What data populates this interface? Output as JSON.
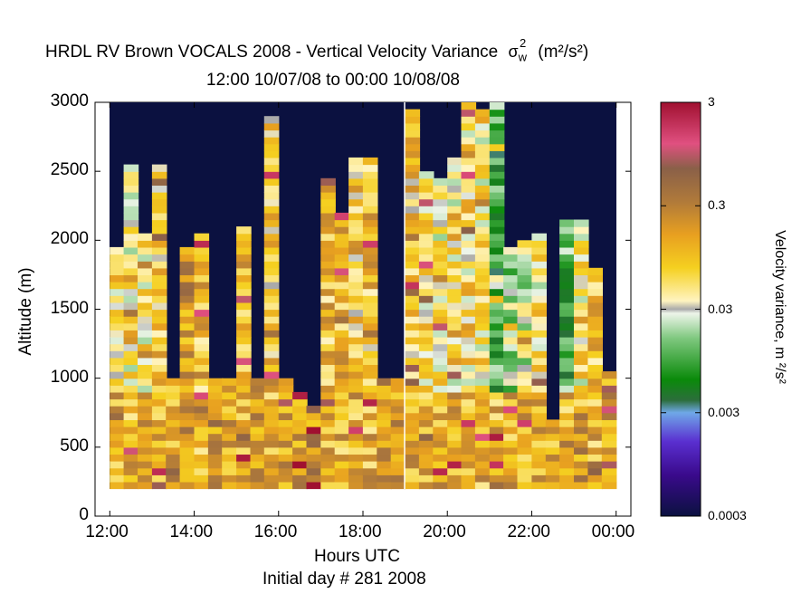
{
  "title": "HRDL RV Brown VOCALS 2008 - Vertical Velocity Variance",
  "title_symbol": "σ",
  "title_symbol_sub": "w",
  "title_symbol_sup": "2",
  "title_units": "(m²/s²)",
  "subtitle": "12:00 10/07/08 to 00:00 10/08/08",
  "chart_data": {
    "type": "heatmap",
    "xlabel": "Hours UTC",
    "ylabel": "Altitude (m)",
    "footer": "Initial day # 281  2008",
    "x_ticks": [
      "12:00",
      "14:00",
      "16:00",
      "18:00",
      "20:00",
      "22:00",
      "00:00"
    ],
    "x_tick_hours": [
      12,
      14,
      16,
      18,
      20,
      22,
      24
    ],
    "xlim_hours": [
      11.65,
      24.35
    ],
    "y_ticks": [
      "0",
      "500",
      "1000",
      "1500",
      "2000",
      "2500",
      "3000"
    ],
    "y_tick_values": [
      0,
      500,
      1000,
      1500,
      2000,
      2500,
      3000
    ],
    "ylim": [
      0,
      3000
    ],
    "data_range_altitude_m": [
      200,
      3000
    ],
    "data_range_hours": [
      12,
      24
    ],
    "colorbar": {
      "label": "Velocity variance, m ²/s²",
      "scale": "log",
      "ticks": [
        "3",
        "0.3",
        "0.03",
        "0.003",
        "0.0003"
      ],
      "tick_values": [
        3,
        0.3,
        0.03,
        0.003,
        0.0003
      ],
      "range": [
        0.0003,
        3
      ]
    },
    "background_color": "#0b1140",
    "data_gap_hour": 19.0,
    "columns": [
      {
        "hour": 12.17,
        "top_m": 1930,
        "mean_variance": 0.06
      },
      {
        "hour": 12.5,
        "top_m": 2550,
        "mean_variance": 0.05
      },
      {
        "hour": 12.83,
        "top_m": 2050,
        "mean_variance": 0.05
      },
      {
        "hour": 13.17,
        "top_m": 2550,
        "mean_variance": 0.08
      },
      {
        "hour": 13.5,
        "top_m": 1000,
        "mean_variance": 0.15
      },
      {
        "hour": 13.83,
        "top_m": 1950,
        "mean_variance": 0.2
      },
      {
        "hour": 14.17,
        "top_m": 2050,
        "mean_variance": 0.1
      },
      {
        "hour": 14.5,
        "top_m": 1000,
        "mean_variance": 0.2
      },
      {
        "hour": 14.83,
        "top_m": 1000,
        "mean_variance": 0.15
      },
      {
        "hour": 15.17,
        "top_m": 2100,
        "mean_variance": 0.1
      },
      {
        "hour": 15.5,
        "top_m": 1000,
        "mean_variance": 0.2
      },
      {
        "hour": 15.83,
        "top_m": 2900,
        "mean_variance": 0.08
      },
      {
        "hour": 16.17,
        "top_m": 1000,
        "mean_variance": 0.15
      },
      {
        "hour": 16.5,
        "top_m": 900,
        "mean_variance": 0.2
      },
      {
        "hour": 16.83,
        "top_m": 800,
        "mean_variance": 0.2
      },
      {
        "hour": 17.17,
        "top_m": 2450,
        "mean_variance": 0.1
      },
      {
        "hour": 17.5,
        "top_m": 2200,
        "mean_variance": 0.1
      },
      {
        "hour": 17.83,
        "top_m": 2600,
        "mean_variance": 0.08
      },
      {
        "hour": 18.17,
        "top_m": 2600,
        "mean_variance": 0.08
      },
      {
        "hour": 18.5,
        "top_m": 1000,
        "mean_variance": 0.2
      },
      {
        "hour": 18.83,
        "top_m": 980,
        "mean_variance": 0.15
      },
      {
        "hour": 19.17,
        "top_m": 2950,
        "mean_variance": 0.08
      },
      {
        "hour": 19.5,
        "top_m": 2500,
        "mean_variance": 0.06
      },
      {
        "hour": 19.83,
        "top_m": 2450,
        "mean_variance": 0.05
      },
      {
        "hour": 20.17,
        "top_m": 2600,
        "mean_variance": 0.05
      },
      {
        "hour": 20.5,
        "top_m": 3000,
        "mean_variance": 0.06
      },
      {
        "hour": 20.83,
        "top_m": 2950,
        "mean_variance": 0.05
      },
      {
        "hour": 21.17,
        "top_m": 3000,
        "mean_variance": 0.01
      },
      {
        "hour": 21.5,
        "top_m": 1950,
        "mean_variance": 0.02
      },
      {
        "hour": 21.83,
        "top_m": 2000,
        "mean_variance": 0.03
      },
      {
        "hour": 22.17,
        "top_m": 2050,
        "mean_variance": 0.05
      },
      {
        "hour": 22.5,
        "top_m": 700,
        "mean_variance": 0.1
      },
      {
        "hour": 22.83,
        "top_m": 2150,
        "mean_variance": 0.01
      },
      {
        "hour": 23.17,
        "top_m": 2150,
        "mean_variance": 0.05
      },
      {
        "hour": 23.5,
        "top_m": 1800,
        "mean_variance": 0.1
      },
      {
        "hour": 23.83,
        "top_m": 1050,
        "mean_variance": 0.15
      }
    ]
  }
}
